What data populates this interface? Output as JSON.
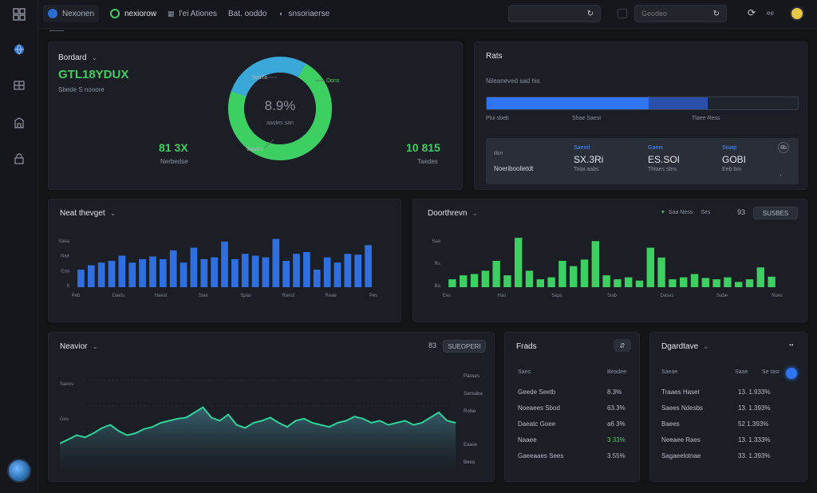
{
  "topbar": {
    "tabs": [
      {
        "label": "Nexonen",
        "icon": "logo-icon"
      },
      {
        "label": "nexiorow",
        "icon": "refresh-icon"
      },
      {
        "label": "l'ei Ationes",
        "icon": "grid-icon"
      },
      {
        "label": "Bat. ooddo",
        "icon": ""
      },
      {
        "label": "snsoriaerse",
        "icon": "chat-icon"
      }
    ],
    "search1_placeholder": "",
    "search2_placeholder": "Geodeo",
    "user_label": "ee"
  },
  "sidebar": {
    "items": [
      {
        "icon": "globe-icon"
      },
      {
        "icon": "layout-icon"
      },
      {
        "icon": "building-icon"
      },
      {
        "icon": "lock-icon"
      }
    ]
  },
  "overview": {
    "title": "Bordard",
    "headline": "GTL18YDUX",
    "sub": "Sbede S nooore",
    "left_value": "81 3X",
    "left_label": "Nerbedse",
    "right_value": "10 815",
    "right_label": "Taedes",
    "donut_center": "8.9%",
    "donut_center_sub": "aastes san",
    "donut_tl": "5eaTa",
    "donut_tr": "Dons",
    "donut_bl": "Waaks",
    "donut_fraction": 0.72,
    "colors": {
      "green": "#3ecf63",
      "blue": "#3aa7d9"
    }
  },
  "progress_card": {
    "title": "Rats",
    "sub": "Nileaneved sad his",
    "bar_labels": [
      "Plui sbeb",
      "Shae Saest",
      "Tlaee Ress"
    ],
    "segments": [
      0.52,
      0.19
    ],
    "stats": [
      {
        "label": "dsn",
        "value": "",
        "sub": "Noeriboolietdt"
      },
      {
        "label": "Saeed",
        "value": "SX.3Ri",
        "sub": "Tolai aabs"
      },
      {
        "label": "Gaeei",
        "value": "ES.SOI",
        "sub": "Thlaes sbrs"
      },
      {
        "label": "Soatp",
        "value": "GOBI",
        "sub": "Eeb bm"
      }
    ],
    "corner": "8b"
  },
  "blue_chart": {
    "title": "Neat thevget",
    "ylabels": [
      "Saea",
      "Naa",
      "Eaa",
      "8"
    ],
    "xlabels": [
      "Peb",
      "Daeis",
      "Haest",
      "Siae",
      "Spas",
      "Raest",
      "Reae",
      "Pes"
    ],
    "chart_data": {
      "type": "bar",
      "values": [
        20,
        25,
        28,
        30,
        36,
        28,
        32,
        35,
        32,
        42,
        28,
        45,
        32,
        34,
        52,
        32,
        38,
        36,
        34,
        55,
        30,
        38,
        40,
        20,
        34,
        28,
        38,
        37,
        48
      ],
      "ylim": [
        0,
        60
      ],
      "color": "#2f6fe0"
    }
  },
  "green_chart": {
    "title": "Doorthrevn",
    "legend": "Saa Ness",
    "legend2": "Ses",
    "count": "93",
    "button": "SUSBES",
    "ylabels": [
      "Saa",
      "Rs",
      "Ba"
    ],
    "xlabels": [
      "Ees",
      "Has",
      "Saps",
      "Siab",
      "Dasas",
      "Sabe",
      "Noes"
    ],
    "chart_data": {
      "type": "bar",
      "values": [
        12,
        18,
        20,
        25,
        40,
        18,
        75,
        25,
        12,
        15,
        40,
        32,
        42,
        70,
        18,
        12,
        15,
        10,
        60,
        45,
        12,
        15,
        20,
        14,
        12,
        15,
        8,
        12,
        30,
        16
      ],
      "ylim": [
        0,
        80
      ],
      "color": "#3ecf63"
    }
  },
  "area_chart": {
    "title": "Neavior",
    "count": "83",
    "button": "SUEOPERI",
    "ylabels_left": [
      "Saees",
      "Ges"
    ],
    "ylabels_right": [
      "Paoses",
      "Sansaba",
      "Rolse",
      "Eaase",
      "Beea"
    ],
    "chart_data": {
      "type": "area",
      "values": [
        30,
        34,
        38,
        36,
        40,
        45,
        48,
        42,
        38,
        40,
        44,
        46,
        50,
        52,
        54,
        55,
        60,
        65,
        55,
        52,
        58,
        48,
        45,
        50,
        52,
        55,
        50,
        46,
        52,
        54,
        50,
        48,
        46,
        50,
        52,
        56,
        54,
        50,
        52,
        48,
        50,
        52,
        48,
        50,
        55,
        60,
        52,
        50
      ],
      "ylim": [
        0,
        100
      ]
    }
  },
  "trends": {
    "title": "Frads",
    "col1": "Saes",
    "col2": "Beadee",
    "rows": [
      {
        "name": "Geede Seetb",
        "value": "8.3%",
        "green": false
      },
      {
        "name": "Noeaees Sbod",
        "value": "63.3%",
        "green": false
      },
      {
        "name": "Daeatc Goee",
        "value": "a6 3%",
        "green": false
      },
      {
        "name": "Naaee",
        "value": "3 33%",
        "green": true
      },
      {
        "name": "Gaeeaaes Sees",
        "value": "3.55%",
        "green": false
      }
    ]
  },
  "departments": {
    "title": "Dgardtave",
    "col1": "Saeae",
    "col2": "Saae",
    "col3": "Se tasr",
    "menu": "••",
    "rows": [
      {
        "name": "Traaes Haset",
        "value": "13. 1.933%"
      },
      {
        "name": "Saees Ndesbs",
        "value": "13. 1.393%"
      },
      {
        "name": "Baees",
        "value": "52 1.393%"
      },
      {
        "name": "Neeaee Raes",
        "value": "13. 1.333%"
      },
      {
        "name": "Sagaeelotnae",
        "value": "33. 1.393%"
      }
    ]
  }
}
